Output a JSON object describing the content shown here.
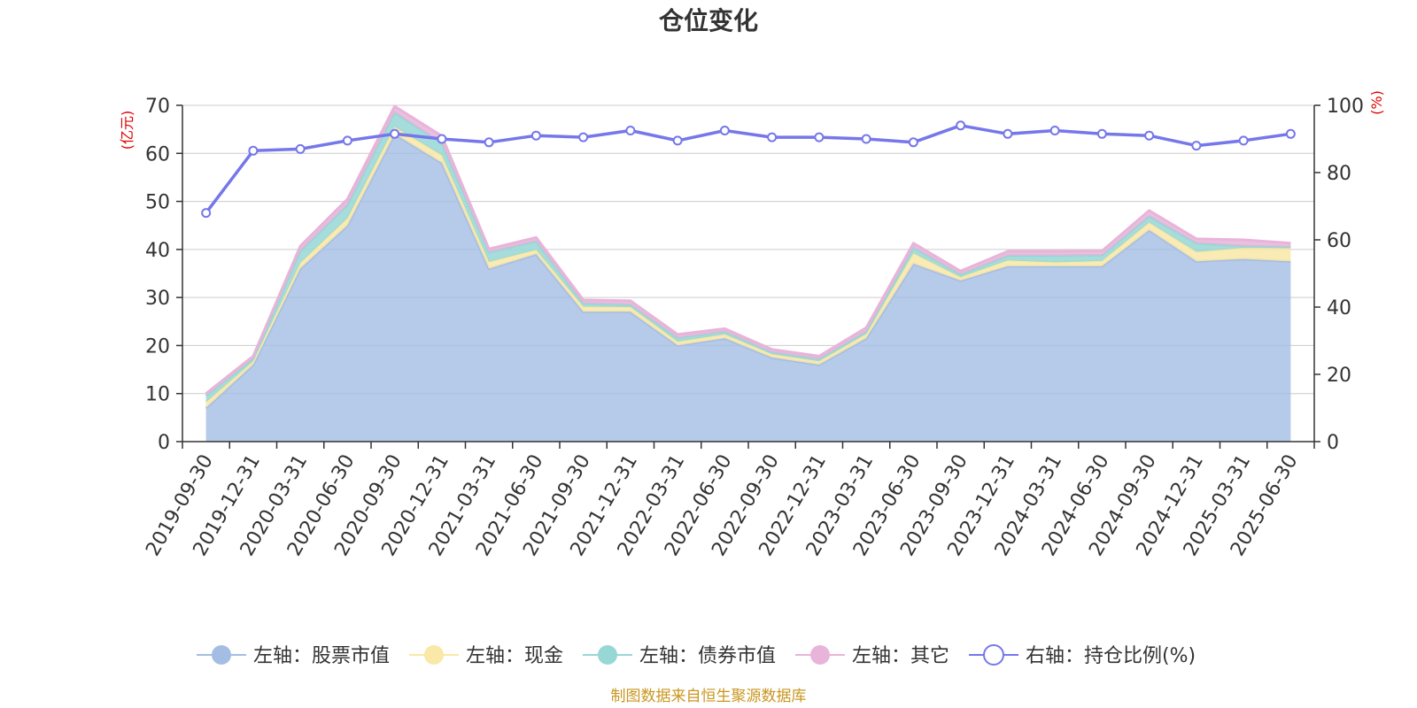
{
  "chart_data": {
    "type": "area",
    "title": "仓位变化",
    "source": "制图数据来自恒生聚源数据库",
    "left_axis": {
      "unit": "(亿元)",
      "range": [
        0,
        70
      ],
      "ticks": [
        0,
        10,
        20,
        30,
        40,
        50,
        60,
        70
      ]
    },
    "right_axis": {
      "unit": "(%)",
      "range": [
        0,
        100
      ],
      "ticks": [
        0,
        20,
        40,
        60,
        80,
        100
      ]
    },
    "grid": true,
    "legend_position": "bottom",
    "categories": [
      "2019-09-30",
      "2019-12-31",
      "2020-03-31",
      "2020-06-30",
      "2020-09-30",
      "2020-12-31",
      "2021-03-31",
      "2021-06-30",
      "2021-09-30",
      "2021-12-31",
      "2022-03-31",
      "2022-06-30",
      "2022-09-30",
      "2022-12-31",
      "2023-03-31",
      "2023-06-30",
      "2023-09-30",
      "2023-12-31",
      "2024-03-31",
      "2024-06-30",
      "2024-09-30",
      "2024-12-31",
      "2025-03-31",
      "2025-06-30"
    ],
    "series": [
      {
        "name": "左轴：股票市值",
        "axis": "left",
        "type": "stacked-area",
        "color": "#a4bde3",
        "values": [
          7,
          16,
          36,
          45,
          64,
          58,
          36,
          39,
          27,
          27,
          20,
          21.5,
          17.5,
          16,
          21.5,
          37,
          33.5,
          36.5,
          36.5,
          36.5,
          44,
          37.5,
          38,
          37.5
        ]
      },
      {
        "name": "左轴：现金",
        "axis": "left",
        "type": "stacked-area",
        "color": "#f9e8a7",
        "values": [
          1.2,
          0.7,
          1.2,
          1.5,
          1.5,
          1.6,
          1.4,
          0.9,
          1.1,
          1.0,
          0.8,
          0.8,
          0.7,
          0.7,
          0.9,
          2.2,
          0.7,
          1.2,
          0.8,
          1.1,
          1.6,
          2.0,
          2.3,
          2.8
        ]
      },
      {
        "name": "左轴：债券市值",
        "axis": "left",
        "type": "stacked-area",
        "color": "#97d7d6",
        "values": [
          1.3,
          0.6,
          2.5,
          2.8,
          3.0,
          2.5,
          2.0,
          1.8,
          0.7,
          0.5,
          0.8,
          0.6,
          0.4,
          0.5,
          0.5,
          1.2,
          0.6,
          1.0,
          1.4,
          1.2,
          1.3,
          1.8,
          0.4,
          0.2
        ]
      },
      {
        "name": "左轴：其它",
        "axis": "left",
        "type": "stacked-area",
        "color": "#e8b4d9",
        "values": [
          0.5,
          0.5,
          1.0,
          1.2,
          1.3,
          1.5,
          0.7,
          0.8,
          0.7,
          0.8,
          0.7,
          0.6,
          0.6,
          0.6,
          0.8,
          0.9,
          0.7,
          0.9,
          0.9,
          0.9,
          1.2,
          0.9,
          1.3,
          0.8
        ]
      },
      {
        "name": "右轴：持仓比例(%)",
        "axis": "right",
        "type": "line",
        "color": "#7577ea",
        "values": [
          68,
          86.5,
          87,
          89.5,
          91.5,
          90,
          89,
          91,
          90.5,
          92.5,
          89.5,
          92.5,
          90.5,
          90.5,
          90,
          89,
          94,
          91.5,
          92.5,
          91.5,
          91,
          88,
          89.5,
          91.5
        ]
      }
    ]
  }
}
